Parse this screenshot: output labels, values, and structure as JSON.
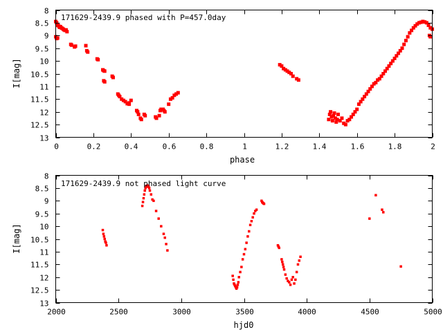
{
  "chart_data": [
    {
      "type": "scatter",
      "title": "171629-2439.9 phased with P=457.0day",
      "xlabel": "phase",
      "ylabel": "I[mag]",
      "xlim": [
        0,
        2
      ],
      "ylim": [
        13,
        8
      ],
      "y_inverted": true,
      "grid": false,
      "legend": "none",
      "marker_color": "#ff0000",
      "xticks": [
        0,
        0.2,
        0.4,
        0.6,
        0.8,
        1,
        1.2,
        1.4,
        1.6,
        1.8,
        2
      ],
      "xtick_labels": [
        "0",
        "0.2",
        "0.4",
        "0.6",
        "0.8",
        "1",
        "1.2",
        "1.4",
        "1.6",
        "1.8",
        "2"
      ],
      "yticks": [
        8,
        8.5,
        9,
        9.5,
        10,
        10.5,
        11,
        11.5,
        12,
        12.5,
        13
      ],
      "ytick_labels": [
        "8",
        "8.5",
        "9",
        "9.5",
        "10",
        "10.5",
        "11",
        "11.5",
        "12",
        "12.5",
        "13"
      ],
      "series": [
        {
          "x": [
            0.0,
            0.005,
            0.01,
            0.015,
            0.02,
            0.025,
            0.03,
            0.035,
            0.04,
            0.045,
            0.05,
            0.055,
            0.06,
            0.0,
            0.005,
            0.01,
            0.08,
            0.085,
            0.1,
            0.105,
            0.16,
            0.165,
            0.17,
            0.22,
            0.225,
            0.25,
            0.255,
            0.26,
            0.255,
            0.26,
            0.3,
            0.305,
            0.33,
            0.335,
            0.34,
            0.35,
            0.36,
            0.37,
            0.38,
            0.39,
            0.39,
            0.4,
            0.43,
            0.435,
            0.44,
            0.45,
            0.455,
            0.47,
            0.475,
            0.53,
            0.535,
            0.55,
            0.555,
            0.56,
            0.57,
            0.575,
            0.58,
            0.6,
            0.61,
            0.62,
            0.63,
            0.64,
            0.65,
            1.19,
            1.2,
            1.21,
            1.22,
            1.23,
            1.24,
            1.25,
            1.26,
            1.28,
            1.29,
            1.45,
            1.455,
            1.46,
            1.465,
            1.47,
            1.475,
            1.48,
            1.485,
            1.49,
            1.495,
            1.5,
            1.51,
            1.52,
            1.53,
            1.54,
            1.55,
            1.56,
            1.57,
            1.58,
            1.59,
            1.6,
            1.61,
            1.62,
            1.63,
            1.64,
            1.65,
            1.66,
            1.67,
            1.68,
            1.69,
            1.7,
            1.71,
            1.72,
            1.73,
            1.74,
            1.75,
            1.76,
            1.77,
            1.78,
            1.79,
            1.8,
            1.81,
            1.82,
            1.83,
            1.84,
            1.85,
            1.86,
            1.87,
            1.88,
            1.89,
            1.9,
            1.91,
            1.92,
            1.93,
            1.94,
            1.95,
            1.96,
            1.97,
            1.98,
            1.99,
            2.0,
            1.985,
            1.99
          ],
          "y": [
            8.45,
            8.5,
            8.6,
            8.62,
            8.68,
            8.65,
            8.7,
            8.72,
            8.75,
            8.78,
            8.8,
            8.78,
            8.85,
            9.05,
            9.12,
            9.1,
            9.35,
            9.38,
            9.45,
            9.42,
            9.4,
            9.6,
            9.65,
            9.92,
            9.95,
            10.35,
            10.38,
            10.4,
            10.78,
            10.82,
            10.6,
            10.65,
            11.3,
            11.35,
            11.4,
            11.5,
            11.55,
            11.6,
            11.68,
            11.7,
            11.65,
            11.55,
            11.95,
            12.0,
            12.1,
            12.25,
            12.3,
            12.1,
            12.15,
            12.2,
            12.25,
            12.15,
            11.95,
            11.9,
            11.9,
            11.95,
            12.0,
            11.7,
            11.5,
            11.45,
            11.35,
            11.3,
            11.25,
            10.15,
            10.2,
            10.3,
            10.35,
            10.4,
            10.45,
            10.5,
            10.6,
            10.7,
            10.75,
            12.3,
            12.1,
            12.0,
            12.2,
            12.35,
            12.15,
            12.05,
            12.25,
            12.4,
            12.3,
            12.1,
            12.35,
            12.25,
            12.45,
            12.5,
            12.35,
            12.3,
            12.2,
            12.1,
            12.0,
            11.9,
            11.7,
            11.6,
            11.5,
            11.4,
            11.3,
            11.2,
            11.1,
            11.0,
            10.9,
            10.85,
            10.75,
            10.7,
            10.6,
            10.5,
            10.4,
            10.3,
            10.2,
            10.1,
            10.0,
            9.9,
            9.8,
            9.7,
            9.6,
            9.5,
            9.35,
            9.2,
            9.05,
            8.9,
            8.8,
            8.7,
            8.62,
            8.55,
            8.5,
            8.48,
            8.45,
            8.47,
            8.5,
            8.6,
            8.7,
            8.75,
            9.0,
            9.05
          ]
        }
      ]
    },
    {
      "type": "scatter",
      "title": "171629-2439.9 not phased light curve",
      "xlabel": "hjd0",
      "ylabel": "I[mag]",
      "xlim": [
        2000,
        5000
      ],
      "ylim": [
        13,
        8
      ],
      "y_inverted": true,
      "grid": false,
      "legend": "none",
      "marker_color": "#ff0000",
      "xticks": [
        2000,
        2500,
        3000,
        3500,
        4000,
        4500,
        5000
      ],
      "xtick_labels": [
        "2000",
        "2500",
        "3000",
        "3500",
        "4000",
        "4500",
        "5000"
      ],
      "yticks": [
        8,
        8.5,
        9,
        9.5,
        10,
        10.5,
        11,
        11.5,
        12,
        12.5,
        13
      ],
      "ytick_labels": [
        "8",
        "8.5",
        "9",
        "9.5",
        "10",
        "10.5",
        "11",
        "11.5",
        "12",
        "12.5",
        "13"
      ],
      "series": [
        {
          "x": [
            2375,
            2380,
            2385,
            2390,
            2395,
            2400,
            2405,
            2690,
            2695,
            2700,
            2705,
            2710,
            2715,
            2720,
            2725,
            2730,
            2735,
            2740,
            2745,
            2750,
            2760,
            2770,
            2780,
            2800,
            2820,
            2840,
            2860,
            2870,
            2880,
            2890,
            3410,
            3415,
            3420,
            3425,
            3430,
            3435,
            3440,
            3445,
            3450,
            3455,
            3460,
            3470,
            3480,
            3490,
            3500,
            3510,
            3520,
            3530,
            3540,
            3550,
            3560,
            3570,
            3580,
            3590,
            3600,
            3640,
            3645,
            3650,
            3655,
            3660,
            3770,
            3775,
            3780,
            3800,
            3805,
            3810,
            3815,
            3820,
            3830,
            3840,
            3850,
            3860,
            3870,
            3880,
            3890,
            3900,
            3910,
            3920,
            3930,
            3940,
            3950,
            4500,
            4550,
            4600,
            4610,
            4750
          ],
          "y": [
            10.15,
            10.3,
            10.4,
            10.5,
            10.6,
            10.65,
            10.75,
            9.2,
            9.05,
            8.9,
            8.75,
            8.6,
            8.5,
            8.45,
            8.42,
            8.4,
            8.42,
            8.45,
            8.5,
            8.6,
            8.75,
            8.95,
            9.0,
            9.4,
            9.7,
            10.0,
            10.3,
            10.45,
            10.7,
            10.95,
            11.95,
            12.1,
            12.25,
            12.3,
            12.35,
            12.4,
            12.45,
            12.4,
            12.3,
            12.2,
            12.0,
            11.8,
            11.6,
            11.3,
            11.1,
            10.9,
            10.65,
            10.4,
            10.2,
            9.95,
            9.8,
            9.65,
            9.5,
            9.4,
            9.35,
            9.0,
            9.05,
            9.08,
            9.1,
            9.12,
            10.75,
            10.8,
            10.85,
            11.3,
            11.4,
            11.5,
            11.6,
            11.7,
            11.9,
            12.05,
            12.15,
            12.2,
            12.3,
            12.1,
            12.0,
            12.25,
            12.1,
            11.8,
            11.5,
            11.35,
            11.2,
            9.7,
            8.78,
            9.35,
            9.45,
            11.58
          ]
        }
      ]
    }
  ]
}
